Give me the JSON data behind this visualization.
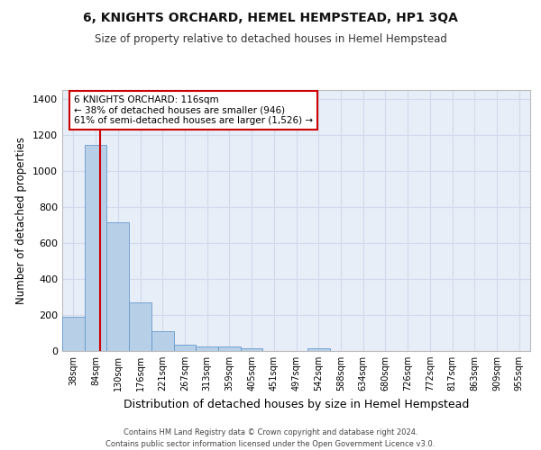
{
  "title": "6, KNIGHTS ORCHARD, HEMEL HEMPSTEAD, HP1 3QA",
  "subtitle": "Size of property relative to detached houses in Hemel Hempstead",
  "xlabel": "Distribution of detached houses by size in Hemel Hempstead",
  "ylabel": "Number of detached properties",
  "bin_labels": [
    "38sqm",
    "84sqm",
    "130sqm",
    "176sqm",
    "221sqm",
    "267sqm",
    "313sqm",
    "359sqm",
    "405sqm",
    "451sqm",
    "497sqm",
    "542sqm",
    "588sqm",
    "634sqm",
    "680sqm",
    "726sqm",
    "772sqm",
    "817sqm",
    "863sqm",
    "909sqm",
    "955sqm"
  ],
  "bar_values": [
    190,
    1145,
    715,
    270,
    108,
    35,
    27,
    25,
    14,
    0,
    0,
    16,
    0,
    0,
    0,
    0,
    0,
    0,
    0,
    0,
    0
  ],
  "bar_color": "#b8cfe8",
  "bar_edge_color": "#6699cc",
  "subject_label": "6 KNIGHTS ORCHARD: 116sqm",
  "annotation_line1": "← 38% of detached houses are smaller (946)",
  "annotation_line2": "61% of semi-detached houses are larger (1,526) →",
  "annotation_box_color": "#ffffff",
  "annotation_border_color": "#cc0000",
  "ylim": [
    0,
    1450
  ],
  "yticks": [
    0,
    200,
    400,
    600,
    800,
    1000,
    1200,
    1400
  ],
  "grid_color": "#d0daea",
  "background_color": "#e8eef8",
  "footer_line1": "Contains HM Land Registry data © Crown copyright and database right 2024.",
  "footer_line2": "Contains public sector information licensed under the Open Government Licence v3.0."
}
